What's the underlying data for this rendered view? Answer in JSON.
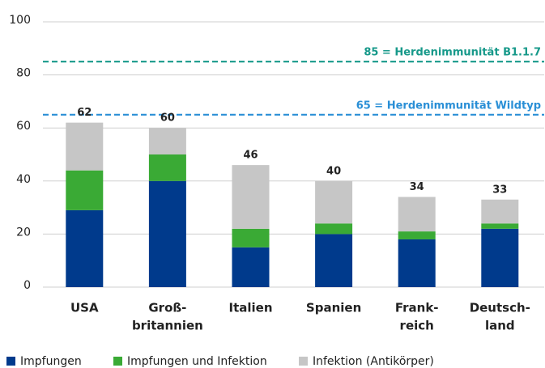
{
  "chart_data": {
    "type": "stacked_bar",
    "categories": [
      [
        "USA"
      ],
      [
        "Groß-",
        "britannien"
      ],
      [
        "Italien"
      ],
      [
        "Spanien"
      ],
      [
        "Frank-",
        "reich"
      ],
      [
        "Deutsch-",
        "land"
      ]
    ],
    "series": [
      {
        "name": "Impfungen",
        "color": "#003a8c",
        "values": [
          29,
          40,
          15,
          20,
          18,
          22
        ]
      },
      {
        "name": "Impfungen und Infektion",
        "color": "#3aaa35",
        "values": [
          15,
          10,
          7,
          4,
          3,
          2
        ]
      },
      {
        "name": "Infektion (Antikörper)",
        "color": "#c6c6c6",
        "values": [
          18,
          10,
          24,
          16,
          13,
          9
        ]
      }
    ],
    "totals": [
      62,
      60,
      46,
      40,
      34,
      33
    ],
    "annotations": [
      {
        "value": 85,
        "label": "85 = Herdenimmunität B1.1.7",
        "color": "#17998a"
      },
      {
        "value": 65,
        "label": "65 = Herdenimmunität Wildtyp",
        "color": "#2a8fd6"
      }
    ],
    "ylim": [
      0,
      100
    ],
    "yticks": [
      0,
      20,
      40,
      60,
      80,
      100
    ],
    "grid": true
  }
}
